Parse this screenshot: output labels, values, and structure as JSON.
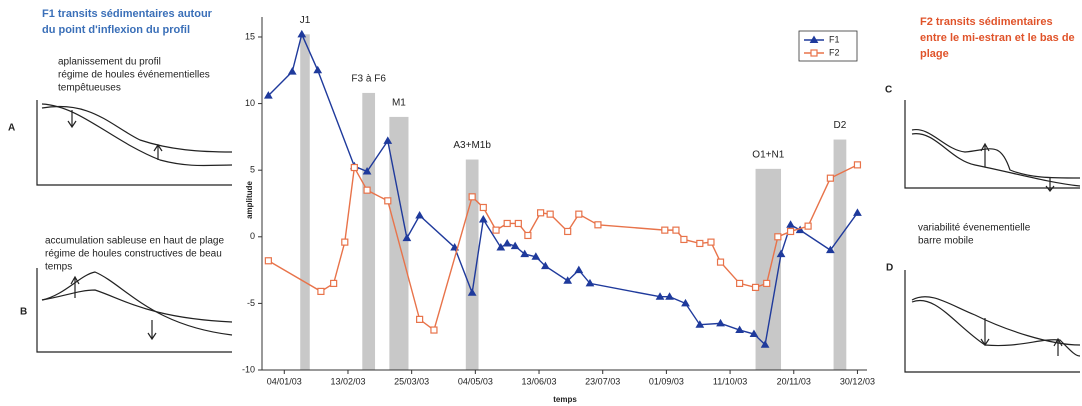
{
  "chart_data": {
    "type": "line",
    "x_label": "temps",
    "y_label": "amplitude",
    "xlim": [
      -10,
      370
    ],
    "ylim": [
      -10,
      16.5
    ],
    "xticks": [
      {
        "value": 4,
        "label": "04/01/03"
      },
      {
        "value": 44,
        "label": "13/02/03"
      },
      {
        "value": 84,
        "label": "25/03/03"
      },
      {
        "value": 124,
        "label": "04/05/03"
      },
      {
        "value": 164,
        "label": "13/06/03"
      },
      {
        "value": 204,
        "label": "23/07/03"
      },
      {
        "value": 244,
        "label": "01/09/03"
      },
      {
        "value": 284,
        "label": "11/10/03"
      },
      {
        "value": 324,
        "label": "20/11/03"
      },
      {
        "value": 364,
        "label": "30/12/03"
      }
    ],
    "yticks": [
      -10,
      -5,
      0,
      5,
      10,
      15
    ],
    "legend": "top-right",
    "series": [
      {
        "name": "F1",
        "color": "#1f3a9c",
        "marker": "triangle",
        "x": [
          -6,
          9,
          15,
          25,
          48,
          56,
          69,
          81,
          89,
          111,
          122,
          129,
          140,
          144,
          149,
          155,
          162,
          168,
          182,
          189,
          196,
          240,
          246,
          256,
          265,
          278,
          290,
          299,
          306,
          316,
          322,
          328,
          347,
          364
        ],
        "values": [
          10.6,
          12.4,
          15.2,
          12.5,
          5.3,
          4.9,
          7.2,
          -0.1,
          1.6,
          -0.8,
          -4.2,
          1.3,
          -0.8,
          -0.5,
          -0.7,
          -1.3,
          -1.5,
          -2.2,
          -3.3,
          -2.5,
          -3.5,
          -4.5,
          -4.5,
          -5.0,
          -6.6,
          -6.5,
          -7.0,
          -7.3,
          -8.1,
          -1.3,
          0.9,
          0.5,
          -1.0,
          1.8
        ]
      },
      {
        "name": "F2",
        "color": "#e8734a",
        "marker": "square",
        "x": [
          -6,
          27,
          35,
          42,
          48,
          56,
          69,
          89,
          98,
          122,
          129,
          137,
          144,
          151,
          157,
          165,
          171,
          182,
          189,
          201,
          243,
          250,
          255,
          265,
          272,
          278,
          290,
          300,
          307,
          314,
          322,
          333,
          347,
          364
        ],
        "values": [
          -1.8,
          -4.1,
          -3.5,
          -0.4,
          5.2,
          3.5,
          2.7,
          -6.2,
          -7.0,
          3.0,
          2.2,
          0.5,
          1.0,
          1.0,
          0.1,
          1.8,
          1.7,
          0.4,
          1.7,
          0.9,
          0.5,
          0.5,
          -0.2,
          -0.5,
          -0.4,
          -1.9,
          -3.5,
          -3.8,
          -3.5,
          0.0,
          0.4,
          0.8,
          4.4,
          5.4
        ]
      }
    ],
    "events": [
      {
        "label": "J1",
        "start": 14,
        "end": 20,
        "height": 15.2
      },
      {
        "label": "F3 à F6",
        "start": 53,
        "end": 61,
        "height": 10.8
      },
      {
        "label": "M1",
        "start": 70,
        "end": 82,
        "height": 9.0
      },
      {
        "label": "A3+M1b",
        "start": 118,
        "end": 126,
        "height": 5.8
      },
      {
        "label": "O1+N1",
        "start": 300,
        "end": 316,
        "height": 5.1
      },
      {
        "label": "D2",
        "start": 349,
        "end": 357,
        "height": 7.3
      }
    ],
    "event_color": "#c8c8c8"
  },
  "left_panel": {
    "title": [
      "F1 transits sédimentaires autour",
      "du point d'inflexion du profil"
    ],
    "notes": [
      {
        "lines": [
          "aplanissement du profil",
          "régime de houles événementielles",
          "tempêtueuses"
        ],
        "letter": "A"
      },
      {
        "lines": [
          "accumulation sableuse en haut de plage",
          "régime de houles constructives de beau",
          "temps"
        ],
        "letter": "B"
      }
    ]
  },
  "right_panel": {
    "title": [
      "F2 transits sédimentaires",
      "entre le mi-estran et le bas de",
      "plage"
    ],
    "notes": [
      {
        "lines": [],
        "letter": "C"
      },
      {
        "lines": [
          "variabilité évenementielle",
          "barre mobile"
        ],
        "letter": "D"
      }
    ]
  }
}
